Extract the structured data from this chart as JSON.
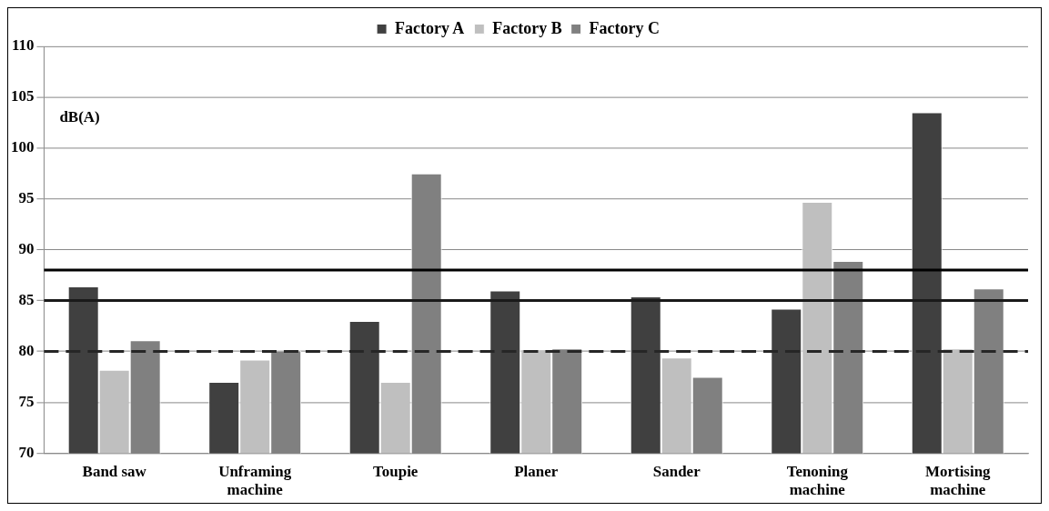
{
  "chart_data": {
    "type": "bar",
    "ylabel": "dB(A)",
    "categories": [
      "Band saw",
      "Unframing machine",
      "Toupie",
      "Planer",
      "Sander",
      "Tenoning machine",
      "Mortising machine"
    ],
    "series": [
      {
        "name": "Factory A",
        "color": "#404040",
        "values": [
          86.4,
          77.0,
          83.0,
          86.0,
          85.4,
          84.2,
          103.5
        ]
      },
      {
        "name": "Factory B",
        "color": "#bfbfbf",
        "values": [
          78.2,
          79.2,
          77.0,
          80.2,
          79.4,
          94.7,
          80.3
        ]
      },
      {
        "name": "Factory C",
        "color": "#808080",
        "values": [
          81.1,
          80.1,
          97.5,
          80.3,
          77.5,
          88.9,
          86.2
        ]
      }
    ],
    "ylim": [
      70,
      110
    ],
    "yticks": [
      70,
      75,
      80,
      85,
      90,
      95,
      100,
      105,
      110
    ],
    "ref_lines": [
      {
        "axis": "y",
        "value": 88,
        "color": "#000000",
        "line_style": "solid"
      },
      {
        "axis": "y",
        "value": 85,
        "color": "#1a1a1a",
        "line_style": "solid"
      },
      {
        "axis": "y",
        "value": 80,
        "color": "#262626",
        "line_style": "dashed"
      }
    ],
    "grid": "y",
    "legend": "top"
  }
}
